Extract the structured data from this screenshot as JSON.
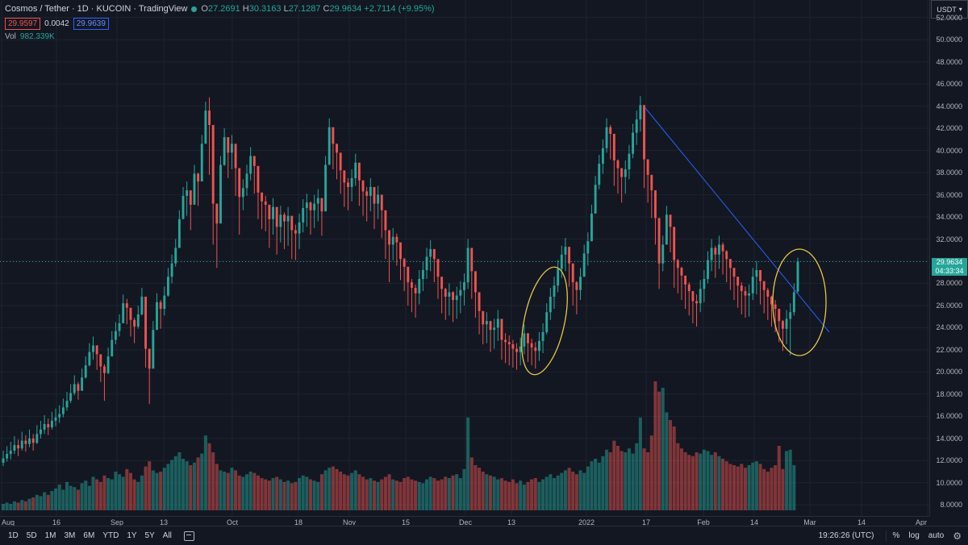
{
  "header": {
    "symbol": "Cosmos / Tether · 1D · KUCOIN · TradingView",
    "ohlc": {
      "o_label": "O",
      "o_value": "27.2691",
      "h_label": "H",
      "h_value": "30.3163",
      "l_label": "L",
      "l_value": "27.1287",
      "c_label": "C",
      "c_value": "29.9634",
      "change": "+2.7114 (+9.95%)"
    },
    "bid": "29.9597",
    "spread": "0.0042",
    "ask": "29.9639",
    "volume_label": "Vol",
    "volume_value": "982.339K"
  },
  "price_axis": {
    "currency": "USDT",
    "current_price": "29.9634",
    "countdown": "04:33:34",
    "ticks": [
      "52.0000",
      "50.0000",
      "48.0000",
      "46.0000",
      "44.0000",
      "42.0000",
      "40.0000",
      "38.0000",
      "36.0000",
      "34.0000",
      "32.0000",
      "30.0000",
      "28.0000",
      "26.0000",
      "24.0000",
      "22.0000",
      "20.0000",
      "18.0000",
      "16.0000",
      "14.0000",
      "12.0000",
      "10.0000",
      "8.0000"
    ]
  },
  "time_axis": [
    "Aug",
    "16",
    "Sep",
    "13",
    "Oct",
    "18",
    "Nov",
    "15",
    "Dec",
    "13",
    "2022",
    "17",
    "Feb",
    "14",
    "Mar",
    "14",
    "Apr"
  ],
  "bottom_bar": {
    "ranges": [
      "1D",
      "5D",
      "1M",
      "3M",
      "6M",
      "YTD",
      "1Y",
      "5Y",
      "All"
    ],
    "clock": "19:26:26 (UTC)",
    "percent": "%",
    "log": "log",
    "auto": "auto"
  },
  "colors": {
    "up": "#26a69a",
    "down": "#ef5350",
    "trendline": "#2962ff",
    "annotation": "#e8c547",
    "background": "#131722"
  },
  "chart_data": {
    "type": "candlestick",
    "title": "Cosmos / Tether · 1D · KUCOIN",
    "xlabel": "",
    "ylabel": "",
    "ylim": [
      7,
      53
    ],
    "x_range": [
      "Aug",
      "Apr"
    ],
    "price_line": 29.9634,
    "candles_close": [
      12.2,
      12.6,
      12.9,
      13.4,
      13.1,
      13.8,
      13.5,
      14.0,
      13.6,
      14.4,
      14.8,
      15.3,
      15.0,
      15.6,
      15.9,
      16.2,
      16.8,
      17.4,
      18.1,
      18.9,
      18.3,
      19.5,
      20.6,
      21.8,
      22.4,
      21.6,
      20.5,
      19.9,
      21.4,
      22.9,
      23.7,
      24.4,
      26.2,
      25.8,
      24.7,
      24.1,
      25.2,
      26.8,
      22.1,
      20.3,
      23.8,
      26.3,
      25.7,
      26.9,
      28.6,
      29.8,
      31.2,
      33.8,
      35.9,
      36.4,
      35.1,
      37.9,
      37.2,
      40.6,
      43.6,
      42.3,
      35.2,
      33.4,
      38.7,
      41.2,
      39.8,
      40.6,
      38.4,
      35.8,
      36.6,
      37.9,
      39.5,
      38.6,
      36.2,
      35.4,
      35.1,
      33.8,
      34.9,
      33.1,
      34.2,
      33.6,
      34.1,
      32.8,
      32.5,
      33.5,
      34.8,
      35.3,
      34.6,
      35.2,
      35.7,
      34.5,
      38.7,
      42.1,
      40.6,
      39.8,
      38.2,
      37.1,
      36.7,
      37.5,
      38.9,
      37.3,
      36.3,
      35.9,
      36.7,
      35.2,
      36.0,
      34.6,
      32.8,
      31.5,
      32.2,
      31.7,
      30.2,
      29.5,
      28.1,
      27.6,
      27.1,
      28.4,
      29.2,
      30.4,
      31.1,
      30.2,
      28.6,
      27.5,
      26.8,
      27.2,
      26.5,
      26.9,
      27.4,
      28.1,
      31.2,
      29.1,
      27.2,
      25.5,
      24.3,
      24.6,
      23.8,
      24.0,
      24.8,
      22.9,
      22.7,
      22.5,
      22.1,
      21.8,
      22.3,
      23.5,
      22.6,
      22.2,
      21.9,
      22.8,
      23.6,
      25.4,
      26.8,
      27.8,
      29.3,
      30.6,
      31.3,
      29.8,
      28.1,
      27.4,
      28.6,
      30.7,
      31.8,
      34.3,
      36.9,
      38.8,
      40.2,
      42.1,
      41.5,
      39.1,
      38.4,
      37.6,
      38.3,
      39.7,
      41.6,
      42.8,
      44.1,
      39.2,
      37.8,
      36.4,
      33.9,
      29.8,
      31.5,
      34.2,
      33.1,
      30.1,
      29.4,
      28.7,
      27.9,
      27.3,
      26.4,
      26.2,
      27.5,
      28.4,
      30.1,
      31.2,
      30.6,
      31.5,
      30.9,
      30.2,
      29.4,
      28.6,
      27.8,
      27.3,
      26.9,
      27.1,
      28.6,
      29.2,
      28.2,
      27.4,
      26.8,
      26.1,
      25.7,
      24.6,
      23.9,
      24.8,
      25.4,
      27.2,
      29.96
    ],
    "candles_low": [
      11.5,
      11.9,
      12.1,
      12.6,
      12.4,
      12.9,
      12.8,
      13.2,
      12.9,
      13.5,
      14.0,
      14.4,
      14.3,
      14.8,
      15.1,
      15.4,
      15.9,
      16.5,
      17.2,
      17.9,
      17.5,
      18.4,
      19.4,
      20.5,
      21.1,
      20.2,
      19.1,
      17.4,
      19.8,
      21.7,
      22.5,
      23.2,
      24.8,
      24.3,
      23.2,
      22.6,
      23.9,
      25.1,
      20.4,
      17.1,
      21.4,
      24.6,
      23.9,
      25.1,
      26.8,
      28.0,
      29.5,
      31.8,
      33.9,
      34.1,
      32.8,
      35.8,
      35.0,
      38.1,
      40.9,
      37.8,
      31.5,
      29.4,
      36.0,
      38.6,
      37.5,
      38.3,
      35.9,
      32.4,
      34.6,
      35.9,
      37.3,
      36.1,
      33.8,
      32.9,
      32.7,
      31.2,
      32.4,
      30.6,
      31.7,
      31.1,
      31.4,
      30.2,
      30.1,
      31.1,
      32.6,
      33.1,
      32.4,
      33.0,
      33.6,
      32.3,
      35.9,
      39.4,
      38.3,
      37.4,
      36.1,
      34.9,
      34.6,
      35.4,
      36.8,
      35.0,
      34.1,
      33.6,
      34.5,
      32.9,
      33.8,
      32.1,
      30.2,
      28.1,
      30.1,
      29.6,
      28.3,
      27.3,
      26.0,
      25.4,
      24.9,
      26.1,
      27.3,
      28.4,
      29.1,
      28.1,
      26.6,
      25.3,
      24.7,
      25.1,
      24.5,
      24.8,
      25.3,
      26.0,
      27.5,
      26.6,
      24.9,
      23.4,
      22.5,
      22.6,
      21.8,
      22.1,
      22.8,
      21.1,
      20.8,
      20.6,
      20.4,
      20.2,
      20.6,
      21.6,
      20.9,
      20.6,
      20.3,
      21.0,
      21.7,
      23.4,
      24.7,
      25.7,
      27.2,
      28.5,
      29.1,
      27.7,
      26.0,
      25.2,
      26.5,
      28.6,
      29.6,
      32.1,
      34.6,
      36.5,
      37.9,
      39.8,
      39.2,
      36.8,
      36.1,
      35.3,
      36.1,
      37.4,
      39.3,
      40.5,
      41.7,
      36.6,
      35.3,
      33.9,
      31.5,
      27.5,
      29.1,
      31.9,
      30.8,
      27.6,
      27.1,
      26.5,
      25.7,
      25.1,
      24.4,
      24.1,
      25.4,
      26.3,
      28.0,
      29.1,
      28.5,
      29.3,
      28.8,
      28.1,
      27.4,
      26.5,
      25.8,
      25.2,
      24.9,
      25.0,
      26.5,
      27.0,
      26.1,
      25.3,
      24.7,
      24.1,
      23.6,
      22.7,
      21.9,
      22.5,
      21.5,
      25.1,
      27.13
    ],
    "candles_high": [
      12.9,
      13.3,
      13.7,
      14.2,
      13.9,
      14.6,
      14.3,
      14.8,
      14.4,
      15.2,
      15.6,
      16.1,
      15.8,
      16.4,
      16.7,
      17.0,
      17.6,
      18.2,
      18.9,
      19.7,
      19.1,
      20.3,
      21.4,
      22.6,
      23.2,
      22.4,
      21.3,
      20.7,
      22.2,
      23.7,
      24.5,
      25.2,
      27.0,
      26.6,
      25.5,
      24.9,
      26.0,
      27.6,
      22.9,
      21.1,
      24.6,
      27.1,
      26.5,
      27.7,
      29.4,
      30.6,
      32.0,
      34.6,
      36.7,
      37.2,
      35.9,
      38.7,
      38.0,
      41.4,
      44.4,
      44.8,
      36.0,
      34.2,
      39.5,
      42.0,
      40.6,
      41.4,
      39.2,
      36.6,
      37.4,
      38.7,
      40.3,
      39.4,
      37.0,
      36.2,
      35.9,
      34.6,
      35.7,
      33.9,
      35.0,
      34.4,
      34.9,
      33.6,
      33.3,
      34.3,
      35.6,
      36.1,
      35.4,
      36.0,
      36.5,
      35.3,
      39.5,
      42.9,
      41.4,
      40.6,
      39.0,
      37.9,
      37.5,
      38.3,
      39.7,
      38.1,
      37.1,
      36.7,
      37.5,
      36.0,
      36.8,
      35.4,
      33.6,
      32.3,
      33.0,
      32.5,
      31.0,
      30.3,
      28.9,
      28.4,
      27.9,
      29.2,
      30.0,
      31.2,
      31.9,
      31.0,
      29.4,
      28.3,
      27.6,
      28.0,
      27.3,
      27.7,
      28.2,
      28.9,
      32.0,
      29.9,
      28.0,
      26.3,
      25.1,
      25.4,
      24.6,
      24.8,
      25.6,
      23.7,
      23.5,
      23.3,
      22.9,
      22.6,
      23.1,
      24.3,
      23.4,
      23.0,
      22.7,
      23.6,
      24.4,
      26.2,
      27.6,
      28.6,
      30.1,
      31.4,
      32.1,
      30.6,
      28.9,
      28.2,
      29.4,
      31.5,
      32.6,
      35.1,
      37.7,
      39.6,
      41.0,
      42.9,
      42.3,
      39.9,
      39.2,
      38.4,
      39.1,
      40.5,
      42.4,
      43.6,
      44.9,
      40.0,
      38.6,
      37.2,
      34.7,
      30.6,
      32.3,
      35.0,
      33.9,
      30.9,
      30.2,
      29.5,
      28.7,
      28.1,
      27.2,
      27.0,
      28.3,
      29.2,
      30.9,
      32.0,
      31.4,
      32.3,
      31.7,
      31.0,
      30.2,
      29.4,
      28.6,
      28.1,
      27.7,
      27.9,
      29.4,
      30.0,
      29.0,
      28.2,
      27.6,
      26.9,
      26.5,
      25.4,
      24.7,
      25.6,
      26.2,
      28.0,
      30.32
    ],
    "candles_open": [
      11.8,
      12.2,
      12.6,
      12.9,
      13.4,
      13.1,
      13.8,
      13.5,
      14.0,
      13.6,
      14.4,
      14.8,
      15.3,
      15.0,
      15.6,
      15.9,
      16.2,
      16.8,
      17.4,
      18.1,
      18.9,
      18.3,
      19.5,
      20.6,
      21.8,
      22.4,
      21.6,
      20.5,
      19.9,
      21.4,
      22.9,
      23.7,
      24.4,
      26.2,
      25.8,
      24.7,
      24.1,
      25.2,
      26.8,
      22.1,
      20.3,
      23.8,
      26.3,
      25.7,
      26.9,
      28.6,
      29.8,
      31.2,
      33.8,
      35.9,
      36.4,
      35.1,
      37.9,
      37.2,
      40.6,
      43.6,
      42.3,
      35.2,
      33.4,
      38.7,
      41.2,
      39.8,
      40.6,
      38.4,
      35.8,
      36.6,
      37.9,
      39.5,
      38.6,
      36.2,
      35.4,
      35.1,
      33.8,
      34.9,
      33.1,
      34.2,
      33.6,
      34.1,
      32.8,
      32.5,
      33.5,
      34.8,
      35.3,
      34.6,
      35.2,
      35.7,
      34.5,
      38.7,
      42.1,
      40.6,
      39.8,
      38.2,
      37.1,
      36.7,
      37.5,
      38.9,
      37.3,
      36.3,
      35.9,
      36.7,
      35.2,
      36.0,
      34.6,
      32.8,
      31.5,
      32.2,
      31.7,
      30.2,
      29.5,
      28.1,
      27.6,
      27.1,
      28.4,
      29.2,
      30.4,
      31.1,
      30.2,
      28.6,
      27.5,
      26.8,
      27.2,
      26.5,
      26.9,
      27.4,
      28.1,
      31.2,
      29.1,
      27.2,
      25.5,
      24.3,
      24.6,
      23.8,
      24.0,
      24.8,
      22.9,
      22.7,
      22.5,
      22.1,
      21.8,
      22.3,
      23.5,
      22.6,
      22.2,
      21.9,
      22.8,
      23.6,
      25.4,
      26.8,
      27.8,
      29.3,
      30.6,
      31.3,
      29.8,
      28.1,
      27.4,
      28.6,
      30.7,
      31.8,
      34.3,
      36.9,
      38.8,
      40.2,
      42.1,
      41.5,
      39.1,
      38.4,
      37.6,
      38.3,
      39.7,
      41.6,
      42.8,
      44.1,
      39.2,
      37.8,
      36.4,
      33.9,
      29.8,
      31.5,
      34.2,
      33.1,
      30.1,
      29.4,
      28.7,
      27.9,
      27.3,
      26.4,
      26.2,
      27.5,
      28.4,
      30.1,
      31.2,
      30.6,
      31.5,
      30.9,
      30.2,
      29.4,
      28.6,
      27.8,
      27.3,
      26.9,
      27.1,
      28.6,
      29.2,
      28.2,
      27.4,
      26.8,
      26.1,
      25.7,
      24.6,
      23.9,
      24.8,
      25.4,
      27.27
    ],
    "volume_level": [
      0.05,
      0.06,
      0.05,
      0.07,
      0.06,
      0.08,
      0.07,
      0.09,
      0.1,
      0.12,
      0.11,
      0.14,
      0.12,
      0.15,
      0.17,
      0.2,
      0.16,
      0.22,
      0.19,
      0.18,
      0.16,
      0.21,
      0.23,
      0.19,
      0.26,
      0.24,
      0.22,
      0.27,
      0.25,
      0.24,
      0.3,
      0.28,
      0.26,
      0.32,
      0.29,
      0.24,
      0.22,
      0.27,
      0.34,
      0.38,
      0.31,
      0.29,
      0.3,
      0.33,
      0.36,
      0.39,
      0.42,
      0.45,
      0.4,
      0.38,
      0.35,
      0.37,
      0.41,
      0.44,
      0.58,
      0.52,
      0.45,
      0.36,
      0.31,
      0.3,
      0.29,
      0.33,
      0.31,
      0.27,
      0.26,
      0.28,
      0.3,
      0.29,
      0.27,
      0.25,
      0.24,
      0.23,
      0.25,
      0.26,
      0.24,
      0.22,
      0.23,
      0.21,
      0.22,
      0.25,
      0.27,
      0.26,
      0.24,
      0.23,
      0.22,
      0.28,
      0.31,
      0.33,
      0.34,
      0.32,
      0.3,
      0.28,
      0.27,
      0.29,
      0.31,
      0.28,
      0.26,
      0.24,
      0.25,
      0.23,
      0.22,
      0.24,
      0.26,
      0.28,
      0.24,
      0.23,
      0.22,
      0.25,
      0.26,
      0.24,
      0.23,
      0.22,
      0.21,
      0.24,
      0.26,
      0.25,
      0.23,
      0.24,
      0.26,
      0.25,
      0.27,
      0.28,
      0.25,
      0.32,
      0.72,
      0.41,
      0.35,
      0.33,
      0.3,
      0.28,
      0.27,
      0.26,
      0.24,
      0.25,
      0.23,
      0.22,
      0.24,
      0.21,
      0.23,
      0.2,
      0.22,
      0.24,
      0.25,
      0.22,
      0.24,
      0.26,
      0.28,
      0.25,
      0.27,
      0.29,
      0.31,
      0.33,
      0.3,
      0.28,
      0.31,
      0.29,
      0.34,
      0.38,
      0.4,
      0.37,
      0.42,
      0.47,
      0.45,
      0.54,
      0.5,
      0.46,
      0.45,
      0.48,
      0.44,
      0.52,
      0.72,
      0.48,
      0.45,
      0.58,
      1.0,
      0.92,
      0.95,
      0.76,
      0.7,
      0.65,
      0.52,
      0.48,
      0.45,
      0.43,
      0.42,
      0.45,
      0.44,
      0.47,
      0.46,
      0.43,
      0.45,
      0.42,
      0.4,
      0.38,
      0.36,
      0.35,
      0.34,
      0.36,
      0.33,
      0.35,
      0.37,
      0.38,
      0.36,
      0.32,
      0.3,
      0.33,
      0.35,
      0.5,
      0.32,
      0.46,
      0.47,
      0.35
    ]
  },
  "annotations": {
    "trendline": "descending trendline",
    "ellipses": 2
  }
}
